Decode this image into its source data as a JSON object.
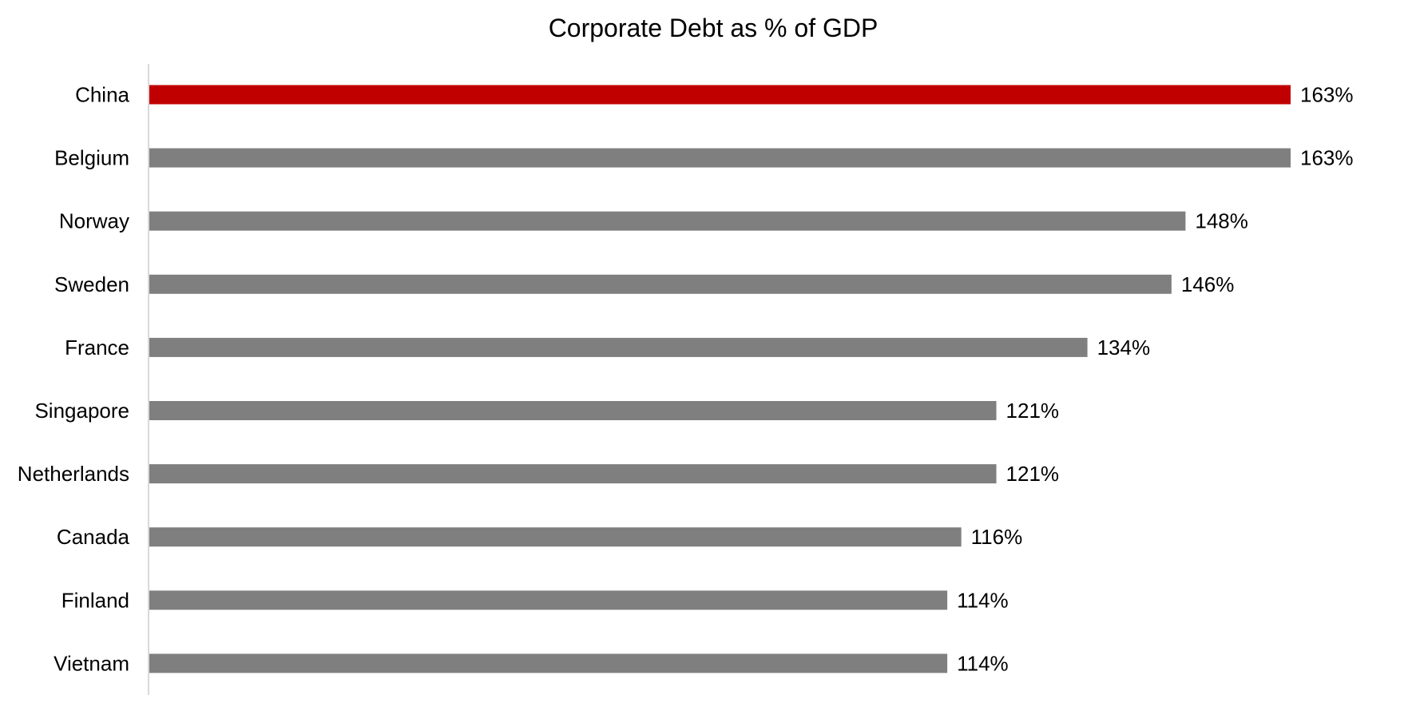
{
  "chart_data": {
    "type": "bar",
    "orientation": "horizontal",
    "title": "Corporate Debt as % of GDP",
    "xlabel": "",
    "ylabel": "",
    "xlim": [
      0,
      163
    ],
    "grid": false,
    "legend": "none",
    "categories": [
      "China",
      "Belgium",
      "Norway",
      "Sweden",
      "France",
      "Singapore",
      "Netherlands",
      "Canada",
      "Finland",
      "Vietnam"
    ],
    "values": [
      163,
      163,
      148,
      146,
      134,
      121,
      121,
      116,
      114,
      114
    ],
    "value_labels": [
      "163%",
      "163%",
      "148%",
      "146%",
      "134%",
      "121%",
      "121%",
      "116%",
      "114%",
      "114%"
    ],
    "highlight_category": "China",
    "colors": {
      "highlight": "#C00000",
      "default": "#7F7F7F",
      "axis": "#D9D9D9"
    }
  }
}
